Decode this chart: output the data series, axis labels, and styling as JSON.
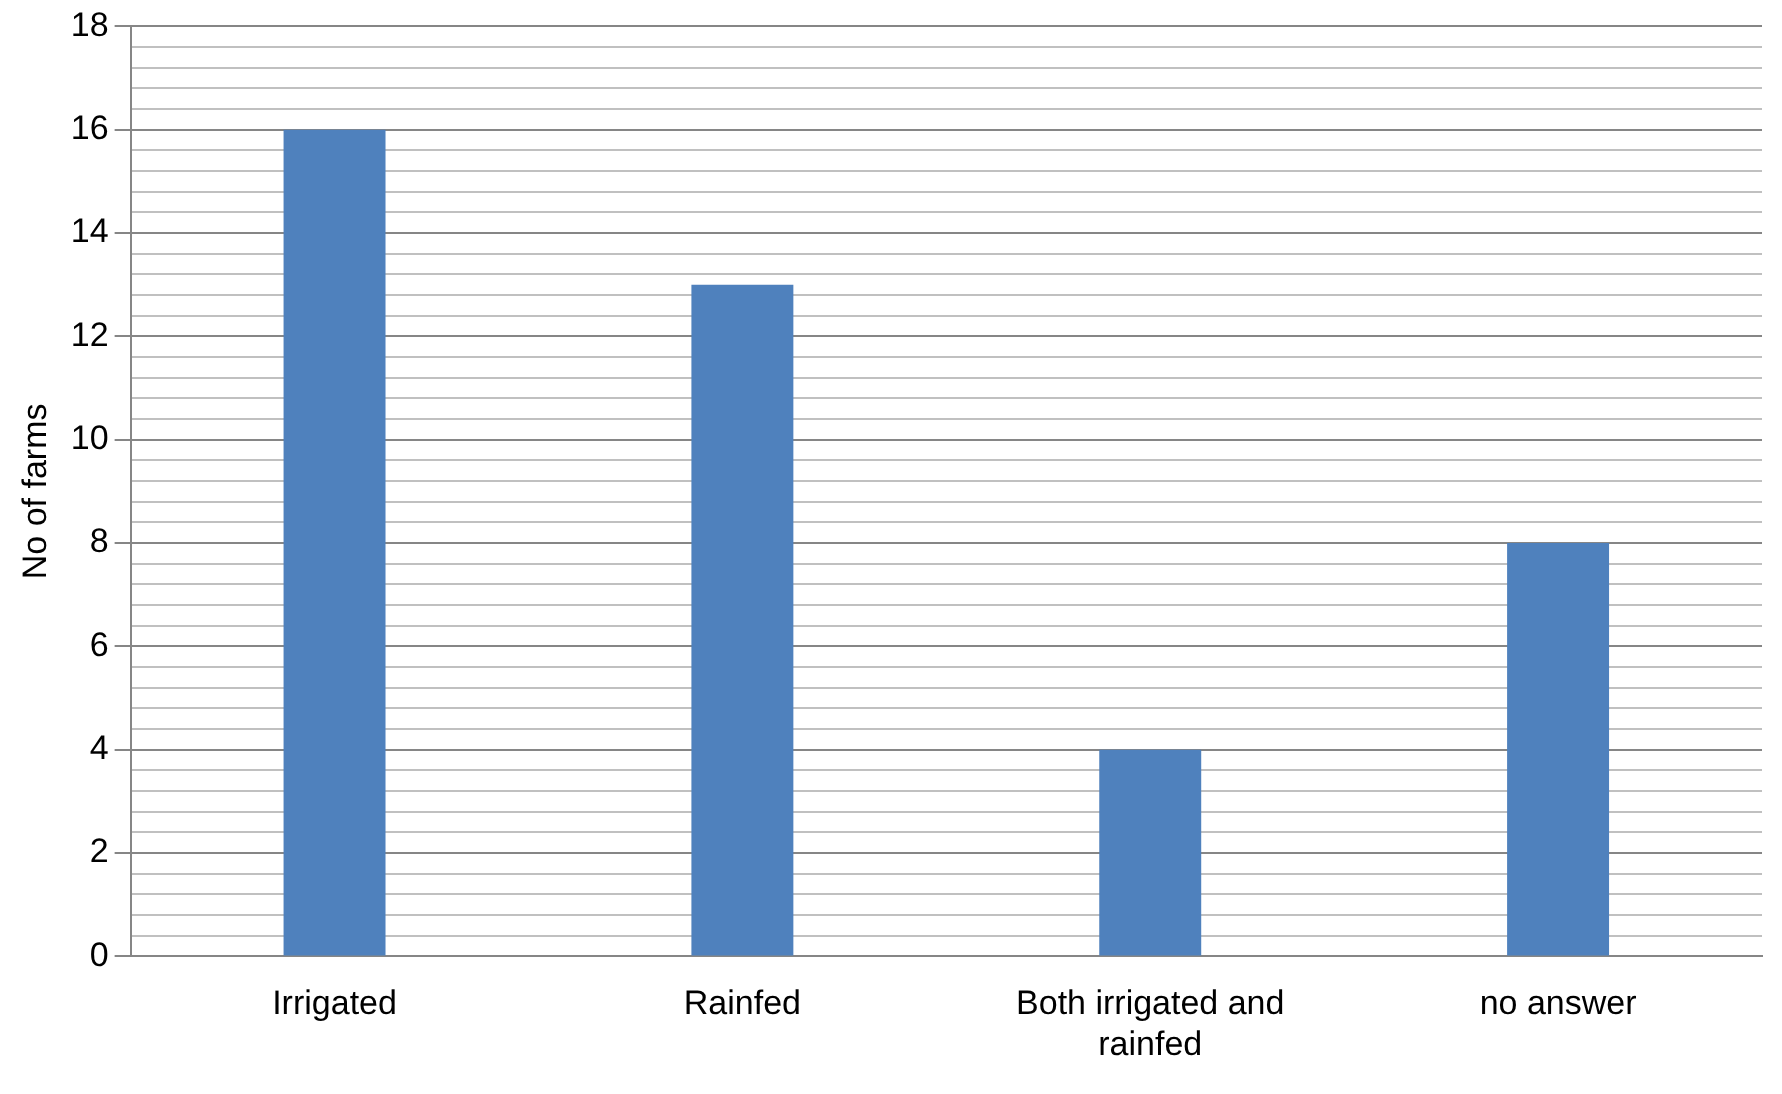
{
  "chart_data": {
    "type": "bar",
    "ylabel": "No of farms",
    "categories": [
      "Irrigated",
      "Rainfed",
      [
        "Both irrigated and",
        "rainfed"
      ],
      "no answer"
    ],
    "values": [
      16,
      13,
      4,
      8
    ],
    "color": "#4f81bd",
    "ylim": [
      0,
      18
    ],
    "yticks": [
      0,
      {
        "value": 0.4,
        "label": null
      },
      {
        "value": 0.8,
        "label": null
      },
      {
        "value": 1.2,
        "label": null
      },
      {
        "value": 1.6,
        "label": null
      },
      2,
      {
        "value": 2.4,
        "label": null
      },
      {
        "value": 2.8,
        "label": null
      },
      {
        "value": 3.2,
        "label": null
      },
      {
        "value": 3.6,
        "label": null
      },
      4,
      {
        "value": 4.4,
        "label": null
      },
      {
        "value": 4.8,
        "label": null
      },
      {
        "value": 5.2,
        "label": null
      },
      {
        "value": 5.6,
        "label": null
      },
      6,
      {
        "value": 6.4,
        "label": null
      },
      {
        "value": 6.8,
        "label": null
      },
      {
        "value": 7.2,
        "label": null
      },
      {
        "value": 7.6,
        "label": null
      },
      8,
      {
        "value": 8.4,
        "label": null
      },
      {
        "value": 8.8,
        "label": null
      },
      {
        "value": 9.2,
        "label": null
      },
      {
        "value": 9.6,
        "label": null
      },
      10,
      {
        "value": 10.4,
        "label": null
      },
      {
        "value": 10.8,
        "label": null
      },
      {
        "value": 11.2,
        "label": null
      },
      {
        "value": 11.6,
        "label": null
      },
      12,
      {
        "value": 12.4,
        "label": null
      },
      {
        "value": 12.8,
        "label": null
      },
      {
        "value": 13.2,
        "label": null
      },
      {
        "value": 13.6,
        "label": null
      },
      14,
      {
        "value": 14.4,
        "label": null
      },
      {
        "value": 14.8,
        "label": null
      },
      {
        "value": 15.2,
        "label": null
      },
      {
        "value": 15.6,
        "label": null
      },
      16,
      {
        "value": 16.4,
        "label": null
      },
      {
        "value": 16.8,
        "label": null
      },
      {
        "value": 17.2,
        "label": null
      },
      {
        "value": 17.6,
        "label": null
      },
      18
    ],
    "grid": "y"
  }
}
